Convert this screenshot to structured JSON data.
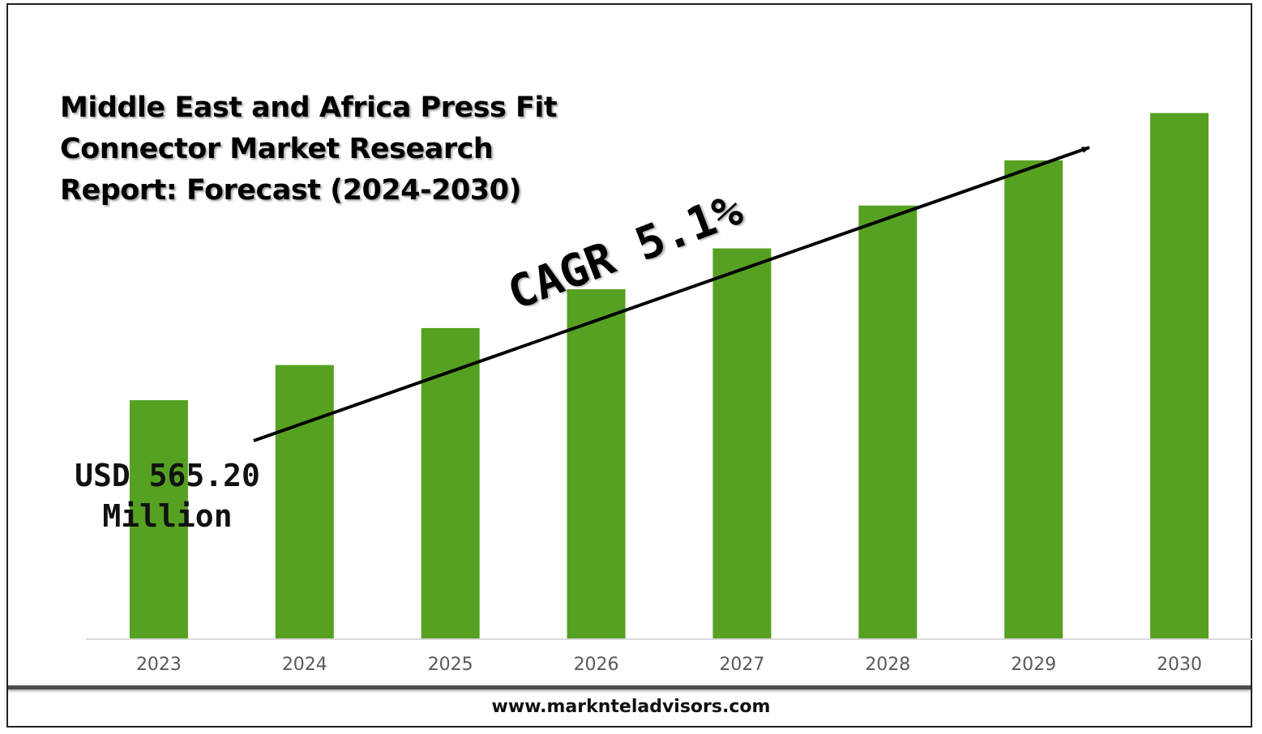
{
  "title": {
    "line1": "Middle East and Africa Press Fit",
    "line2": "Connector Market Research",
    "line3": "Report: Forecast (2024-2030)"
  },
  "annotation": {
    "value_line1": "USD 565.20",
    "value_line2": "Million",
    "cagr": "CAGR 5.1%"
  },
  "footer": {
    "url": "www.marknteladvisors.com"
  },
  "colors": {
    "bar": "#56a122",
    "axis": "#d9d9d9",
    "tick_label": "#595959"
  },
  "chart_data": {
    "type": "bar",
    "categories": [
      "2023",
      "2024",
      "2025",
      "2026",
      "2027",
      "2028",
      "2029",
      "2030"
    ],
    "values": [
      565.2,
      594.0,
      624.3,
      656.1,
      689.6,
      724.7,
      761.7,
      800.5
    ],
    "ylim": [
      370,
      840
    ],
    "title": "Middle East and Africa Press Fit Connector Market Research Report: Forecast (2024-2030)",
    "xlabel": "",
    "ylabel": "",
    "grid": false,
    "annotations": [
      "USD 565.20 Million",
      "CAGR 5.1%"
    ]
  }
}
